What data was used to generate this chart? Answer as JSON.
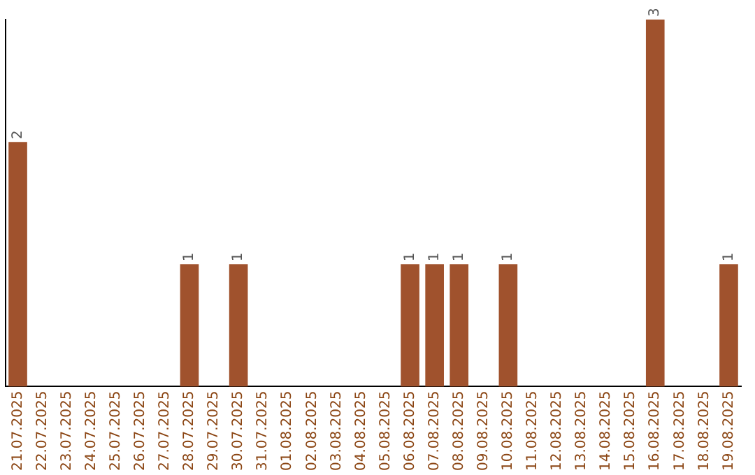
{
  "chart_data": {
    "type": "bar",
    "categories": [
      "21.07.2025",
      "22.07.2025",
      "23.07.2025",
      "24.07.2025",
      "25.07.2025",
      "26.07.2025",
      "27.07.2025",
      "28.07.2025",
      "29.07.2025",
      "30.07.2025",
      "31.07.2025",
      "01.08.2025",
      "02.08.2025",
      "03.08.2025",
      "04.08.2025",
      "05.08.2025",
      "06.08.2025",
      "07.08.2025",
      "08.08.2025",
      "09.08.2025",
      "10.08.2025",
      "11.08.2025",
      "12.08.2025",
      "13.08.2025",
      "14.08.2025",
      "15.08.2025",
      "16.08.2025",
      "17.08.2025",
      "18.08.2025",
      "19.08.2025"
    ],
    "values": [
      2,
      0,
      0,
      0,
      0,
      0,
      0,
      1,
      0,
      1,
      0,
      0,
      0,
      0,
      0,
      0,
      1,
      1,
      1,
      0,
      1,
      0,
      0,
      0,
      0,
      0,
      3,
      0,
      0,
      1
    ],
    "value_labels": [
      "2",
      null,
      null,
      null,
      null,
      null,
      null,
      "1",
      null,
      "1",
      null,
      null,
      null,
      null,
      null,
      null,
      "1",
      "1",
      "1",
      null,
      "1",
      null,
      null,
      null,
      null,
      null,
      "3",
      null,
      null,
      "1"
    ],
    "color": "#a0522d",
    "grid": false,
    "legend": false,
    "tick_labels": "x"
  }
}
